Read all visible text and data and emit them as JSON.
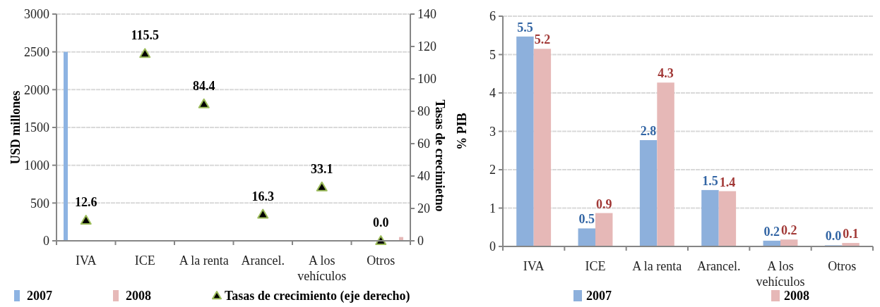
{
  "chart_data": [
    {
      "type": "bar",
      "categories": [
        "IVA",
        "ICE",
        "A la renta",
        "Arancel.",
        "A los vehículos",
        "Otros"
      ],
      "ylabel": "USD millones",
      "y2label": "Tasas de crecimietno",
      "ylim": [
        0,
        3000
      ],
      "yticks": [
        0,
        500,
        1000,
        1500,
        2000,
        2500,
        3000
      ],
      "y2lim": [
        0,
        140
      ],
      "y2ticks": [
        0,
        20,
        40,
        60,
        80,
        100,
        120,
        140
      ],
      "grid": "y",
      "legend": "bottom",
      "series": [
        {
          "name": "2007",
          "color": "#8db3e2",
          "values": [
            2500,
            null,
            null,
            null,
            null,
            null
          ]
        },
        {
          "name": "2008",
          "color": "#e6b9b8",
          "values": [
            null,
            null,
            null,
            null,
            null,
            50
          ]
        },
        {
          "name": "Tasas de crecimiento (eje derecho)",
          "type": "scatter",
          "axis": "y2",
          "marker": "triangle",
          "color": "#000000",
          "values": [
            12.6,
            115.5,
            84.4,
            16.3,
            33.1,
            0.0
          ],
          "value_labels": [
            "12.6",
            "115.5",
            "84.4",
            "16.3",
            "33.1",
            "0.0"
          ]
        }
      ]
    },
    {
      "type": "bar",
      "categories": [
        "IVA",
        "ICE",
        "A la renta",
        "Arancel.",
        "A los vehículos",
        "Otros"
      ],
      "ylabel": "% PIB",
      "ylim": [
        0,
        6
      ],
      "yticks": [
        0,
        1,
        2,
        3,
        4,
        5,
        6
      ],
      "grid": "y",
      "legend": "bottom",
      "series": [
        {
          "name": "2007",
          "color": "#8db0dc",
          "values": [
            5.47,
            0.47,
            2.77,
            1.47,
            0.15,
            0.03
          ],
          "value_labels": [
            "5.5",
            "0.5",
            "2.8",
            "1.5",
            "0.2",
            "0.0"
          ]
        },
        {
          "name": "2008",
          "color": "#e6b8b7",
          "values": [
            5.15,
            0.87,
            4.27,
            1.44,
            0.18,
            0.09
          ],
          "value_labels": [
            "5.2",
            "0.9",
            "4.3",
            "1.4",
            "0.2",
            "0.1"
          ]
        }
      ]
    }
  ]
}
